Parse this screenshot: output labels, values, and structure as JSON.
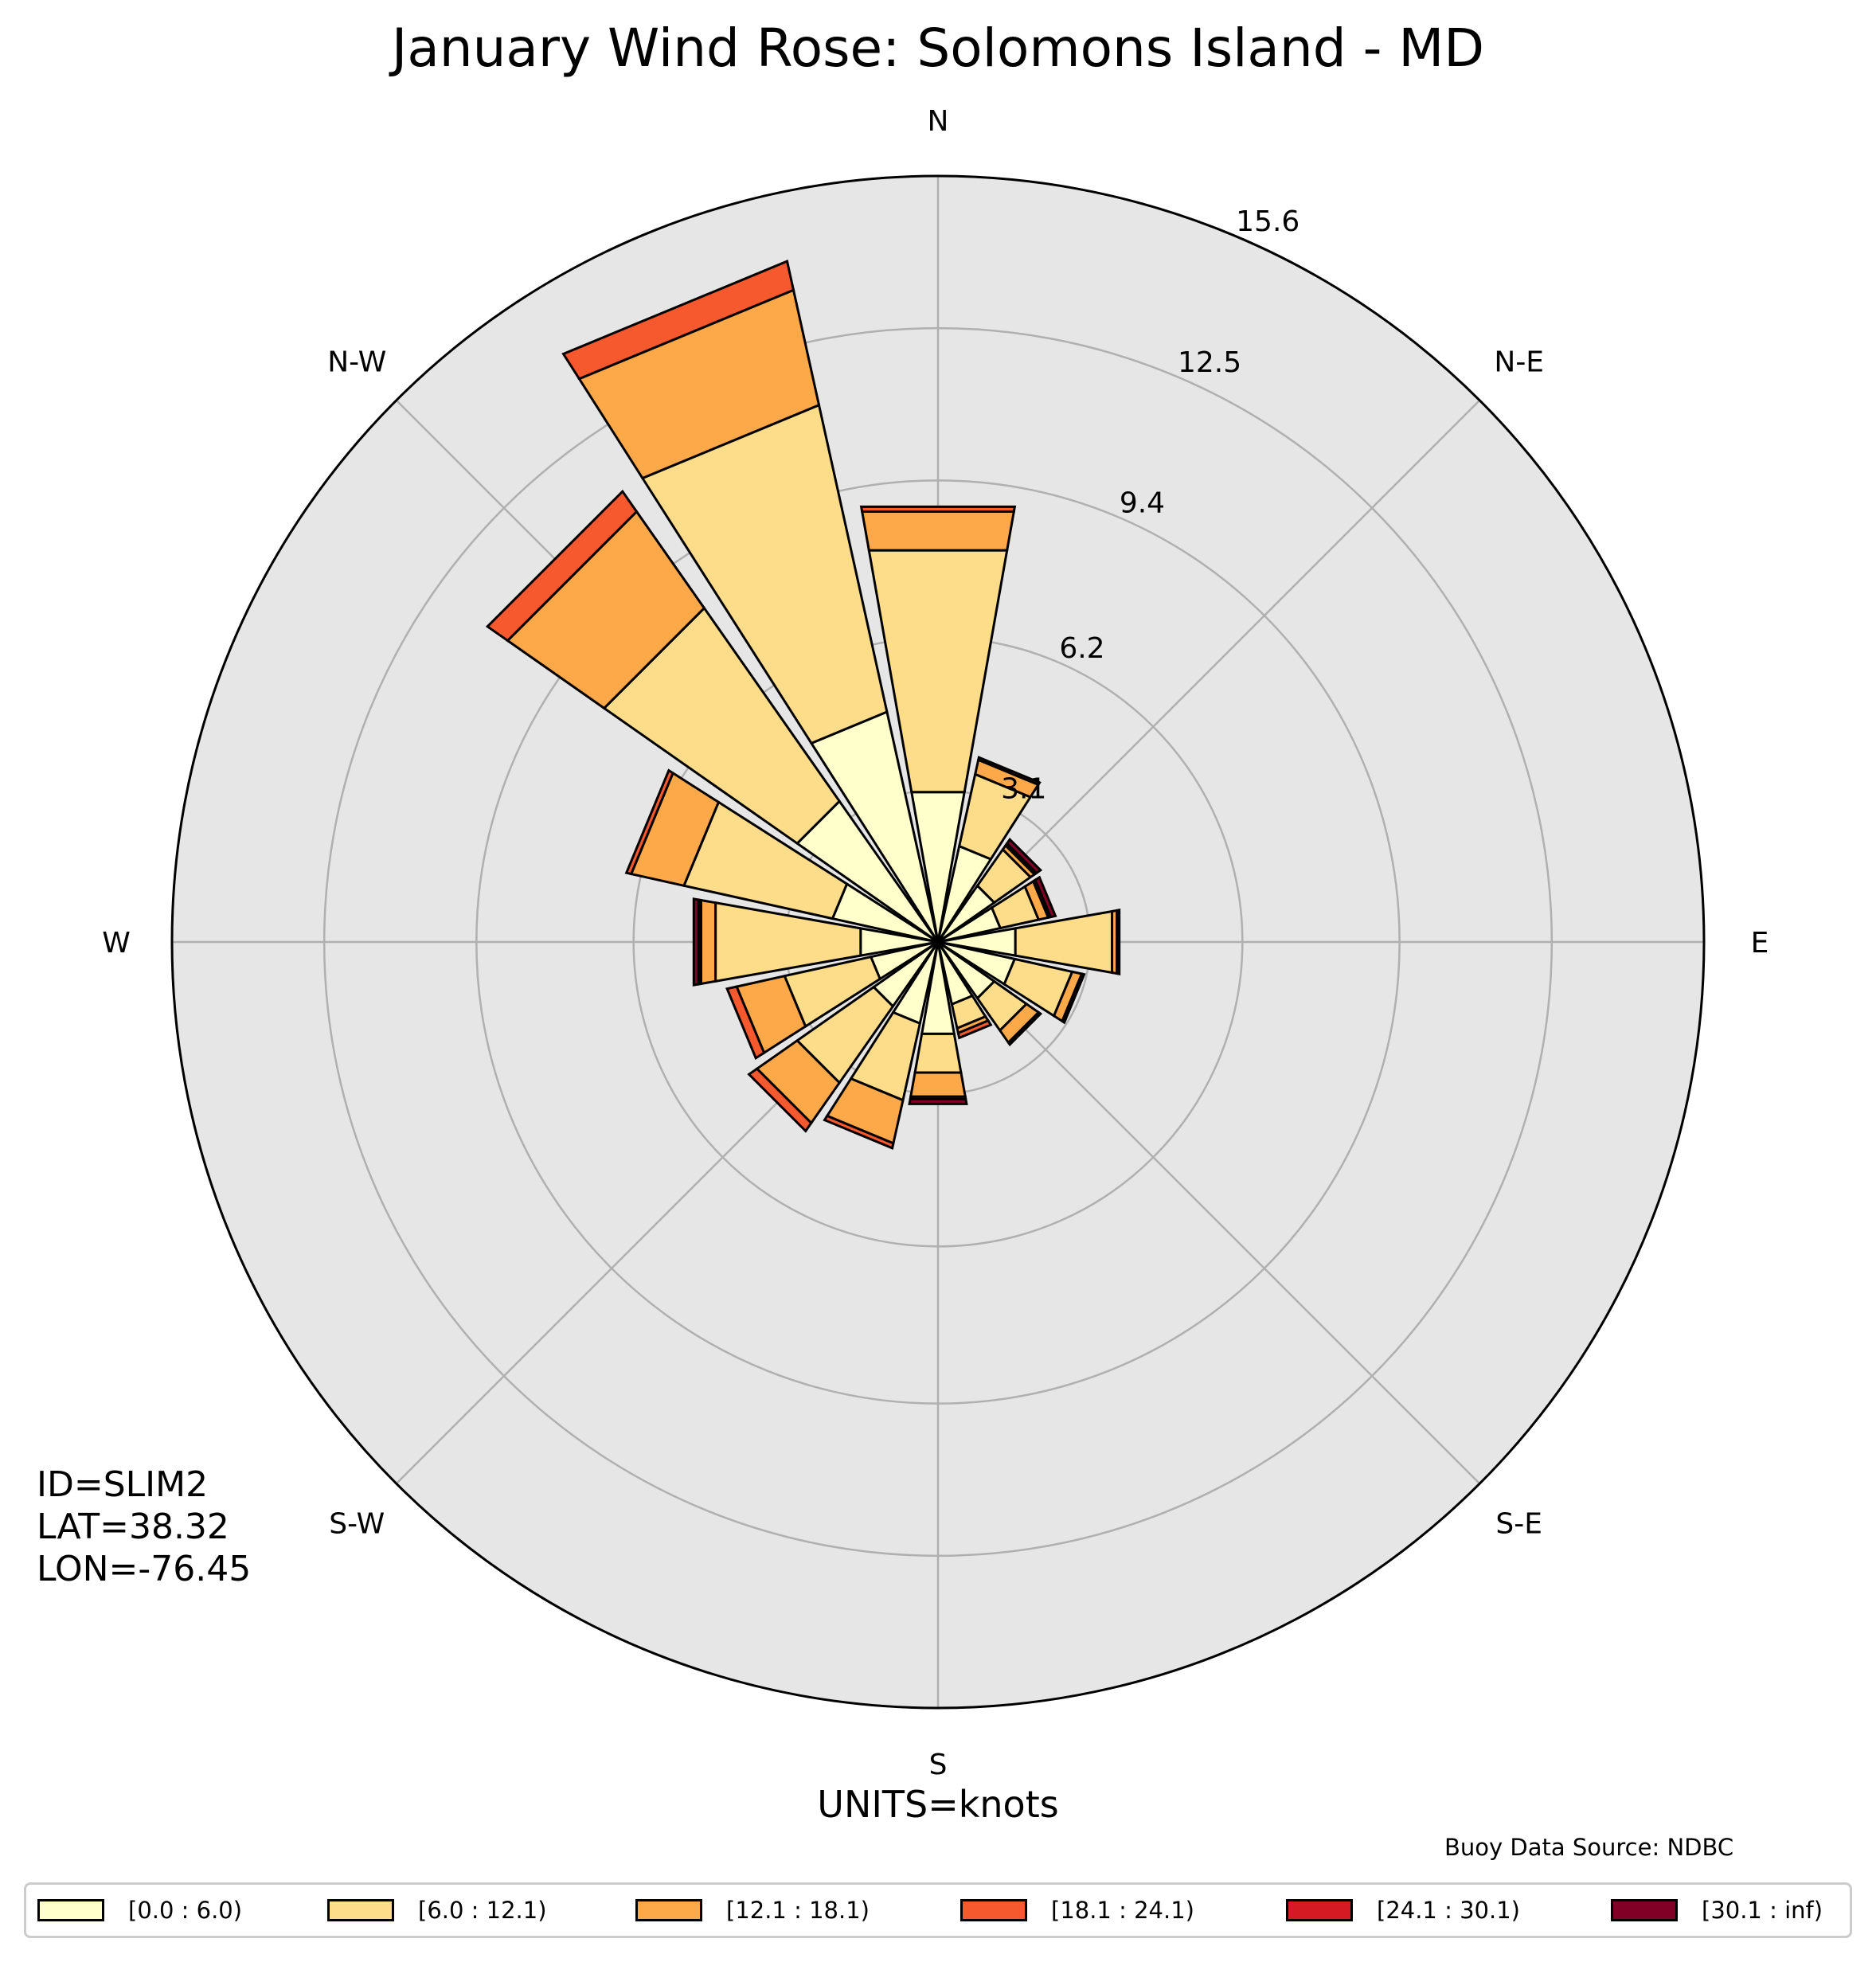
{
  "title": "January Wind Rose: Solomons Island - MD",
  "station": {
    "id": "ID=SLIM2",
    "lat": "LAT=38.32",
    "lon": "LON=-76.45"
  },
  "units": "UNITS=knots",
  "source": "Buoy Data Source: NDBC",
  "colors": {
    "background": "#e6e6e6",
    "grid": "#b0b0b0",
    "bins": [
      "#ffffcc",
      "#fedd8a",
      "#fda949",
      "#f6592d",
      "#d51a24",
      "#800026"
    ]
  },
  "chart_data": {
    "type": "polar-stacked-bar",
    "title": "January Wind Rose: Solomons Island - MD",
    "radial_ticks": [
      "3.1",
      "6.2",
      "9.4",
      "12.5",
      "15.6"
    ],
    "radial_tick_values": [
      3.1,
      6.2,
      9.4,
      12.5,
      15.6
    ],
    "rmax": 15.6,
    "direction_labels": [
      "N",
      "N-E",
      "E",
      "S-E",
      "S",
      "S-W",
      "W",
      "N-W"
    ],
    "direction_angles": [
      0,
      45,
      90,
      135,
      180,
      225,
      270,
      315
    ],
    "directions_deg": [
      0,
      22.5,
      45,
      67.5,
      90,
      112.5,
      135,
      157.5,
      180,
      202.5,
      225,
      247.5,
      270,
      292.5,
      315,
      337.5
    ],
    "legend": [
      "[0.0 : 6.0)",
      "[6.0 : 12.1)",
      "[12.1 : 18.1)",
      "[18.1 : 24.1)",
      "[24.1 : 30.1)",
      "[30.1 : inf)"
    ],
    "series": [
      {
        "name": "[0.0 : 6.0)",
        "values": [
          3.1,
          2.0,
          1.4,
          1.3,
          1.6,
          1.6,
          1.4,
          1.3,
          1.9,
          1.7,
          1.6,
          1.4,
          1.6,
          2.2,
          3.5,
          4.8
        ]
      },
      {
        "name": "[6.0 : 12.1)",
        "values": [
          5.0,
          1.5,
          0.9,
          0.8,
          2.0,
          1.2,
          0.8,
          0.5,
          0.8,
          1.6,
          1.9,
          1.8,
          3.0,
          3.1,
          4.8,
          6.4
        ]
      },
      {
        "name": "[12.1 : 18.1)",
        "values": [
          0.8,
          0.3,
          0.1,
          0.2,
          0.1,
          0.2,
          0.3,
          0.1,
          0.5,
          0.9,
          1.0,
          1.0,
          0.3,
          1.1,
          2.4,
          2.4
        ]
      },
      {
        "name": "[18.1 : 24.1)",
        "values": [
          0.1,
          0.05,
          0.05,
          0.05,
          0.05,
          0.05,
          0.05,
          0.1,
          0.05,
          0.1,
          0.2,
          0.2,
          0.05,
          0.1,
          0.5,
          0.6
        ]
      },
      {
        "name": "[24.1 : 30.1)",
        "values": [
          0.0,
          0.0,
          0.0,
          0.0,
          0.0,
          0.0,
          0.0,
          0.0,
          0.0,
          0.0,
          0.0,
          0.0,
          0.0,
          0.0,
          0.0,
          0.0
        ]
      },
      {
        "name": "[30.1 : inf)",
        "values": [
          0.0,
          0.0,
          0.1,
          0.1,
          0.0,
          0.0,
          0.0,
          0.0,
          0.1,
          0.0,
          0.0,
          0.0,
          0.1,
          0.0,
          0.0,
          0.0
        ]
      }
    ]
  }
}
